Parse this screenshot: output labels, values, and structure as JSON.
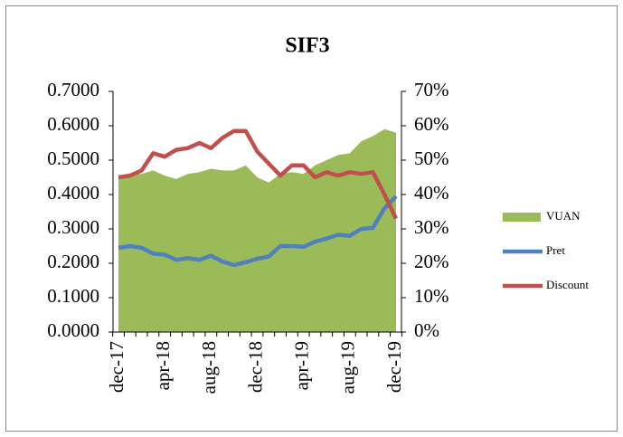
{
  "chart_data": {
    "type": "line",
    "title": "SIF3",
    "categories": [
      "dec-17",
      null,
      null,
      null,
      "apr-18",
      null,
      null,
      null,
      "aug-18",
      null,
      null,
      null,
      "dec-18",
      null,
      null,
      null,
      "apr-19",
      null,
      null,
      null,
      "aug-19",
      null,
      null,
      null,
      "dec-19"
    ],
    "series": [
      {
        "name": "VUAN",
        "type": "area",
        "color": "#9bbb59",
        "values": [
          0.455,
          0.46,
          0.46,
          0.47,
          0.455,
          0.445,
          0.46,
          0.465,
          0.475,
          0.47,
          0.47,
          0.485,
          0.45,
          0.435,
          0.46,
          0.465,
          0.46,
          0.485,
          0.5,
          0.515,
          0.52,
          0.555,
          0.57,
          0.59,
          0.58
        ]
      },
      {
        "name": "Pret",
        "type": "line",
        "color": "#4f81bd",
        "values": [
          0.245,
          0.25,
          0.245,
          0.228,
          0.225,
          0.21,
          0.215,
          0.21,
          0.222,
          0.205,
          0.195,
          0.203,
          0.213,
          0.22,
          0.25,
          0.25,
          0.248,
          0.263,
          0.272,
          0.283,
          0.28,
          0.3,
          0.303,
          0.36,
          0.395
        ]
      },
      {
        "name": "Discount",
        "type": "line",
        "axis": "y2",
        "color": "#c0504d",
        "values": [
          45,
          45.5,
          47,
          52,
          51,
          53,
          53.5,
          55,
          53.5,
          56.5,
          58.5,
          58.5,
          52.5,
          49,
          45.5,
          48.5,
          48.5,
          45,
          46.5,
          45.5,
          46.5,
          46,
          46.5,
          40,
          33
        ]
      }
    ],
    "ylim": [
      0,
      0.7
    ],
    "yticks": [
      {
        "value": 0,
        "label": "0.0000"
      },
      {
        "value": 0.1,
        "label": "0.1000"
      },
      {
        "value": 0.2,
        "label": "0.2000"
      },
      {
        "value": 0.3,
        "label": "0.3000"
      },
      {
        "value": 0.4,
        "label": "0.4000"
      },
      {
        "value": 0.5,
        "label": "0.5000"
      },
      {
        "value": 0.6,
        "label": "0.6000"
      },
      {
        "value": 0.7,
        "label": "0.7000"
      }
    ],
    "y2lim": [
      0,
      70
    ],
    "y2ticks": [
      {
        "value": 0,
        "label": "0%"
      },
      {
        "value": 10,
        "label": "10%"
      },
      {
        "value": 20,
        "label": "20%"
      },
      {
        "value": 30,
        "label": "30%"
      },
      {
        "value": 40,
        "label": "40%"
      },
      {
        "value": 50,
        "label": "50%"
      },
      {
        "value": 60,
        "label": "60%"
      },
      {
        "value": 70,
        "label": "70%"
      }
    ],
    "legend": "right"
  }
}
